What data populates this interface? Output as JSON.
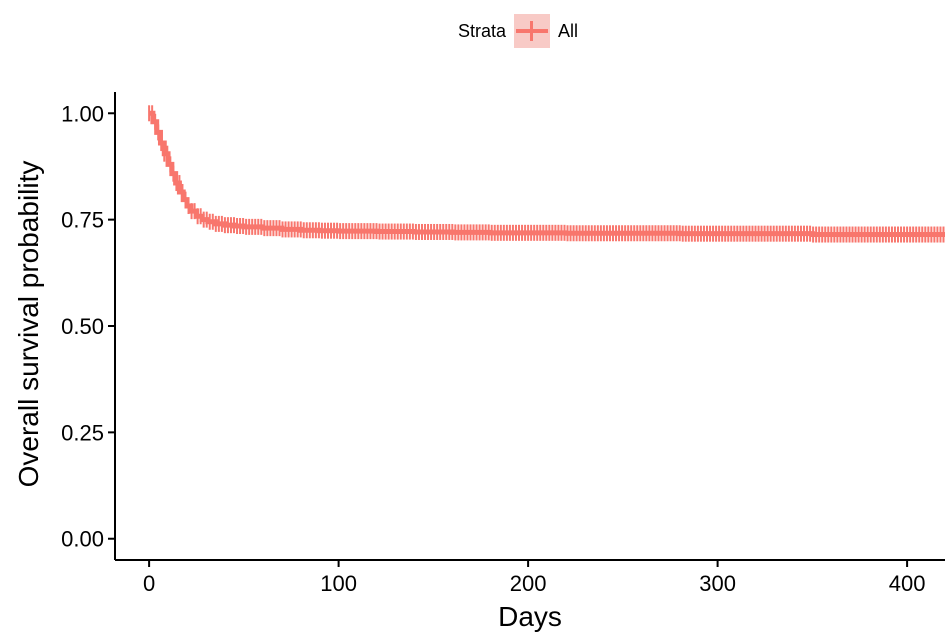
{
  "legend": {
    "title": "Strata",
    "items": [
      {
        "label": "All",
        "color": "#f8766d"
      }
    ]
  },
  "chart_data": {
    "type": "line",
    "xlabel": "Days",
    "ylabel": "Overall survival probability",
    "xlim": [
      -18,
      420
    ],
    "ylim": [
      -0.05,
      1.05
    ],
    "x_ticks": [
      0,
      100,
      200,
      300,
      400
    ],
    "x_tick_labels": [
      "0",
      "100",
      "200",
      "300",
      "400"
    ],
    "y_ticks": [
      0.0,
      0.25,
      0.5,
      0.75,
      1.0
    ],
    "y_tick_labels": [
      "0.00",
      "0.25",
      "0.50",
      "0.75",
      "1.00"
    ],
    "grid": false,
    "legend_position": "top",
    "series": [
      {
        "name": "All",
        "color": "#f8766d",
        "x": [
          0,
          2,
          4,
          6,
          8,
          10,
          12,
          14,
          16,
          18,
          20,
          22,
          25,
          28,
          31,
          35,
          40,
          45,
          50,
          60,
          70,
          80,
          90,
          100,
          120,
          140,
          160,
          180,
          200,
          220,
          240,
          260,
          280,
          300,
          320,
          340,
          350,
          360,
          380,
          400,
          420
        ],
        "y": [
          1.0,
          0.98,
          0.955,
          0.93,
          0.905,
          0.88,
          0.858,
          0.836,
          0.815,
          0.797,
          0.782,
          0.77,
          0.758,
          0.75,
          0.745,
          0.74,
          0.737,
          0.735,
          0.733,
          0.73,
          0.727,
          0.725,
          0.724,
          0.723,
          0.722,
          0.721,
          0.72,
          0.719,
          0.719,
          0.718,
          0.718,
          0.718,
          0.717,
          0.717,
          0.717,
          0.717,
          0.715,
          0.715,
          0.715,
          0.715,
          0.715
        ]
      }
    ]
  }
}
